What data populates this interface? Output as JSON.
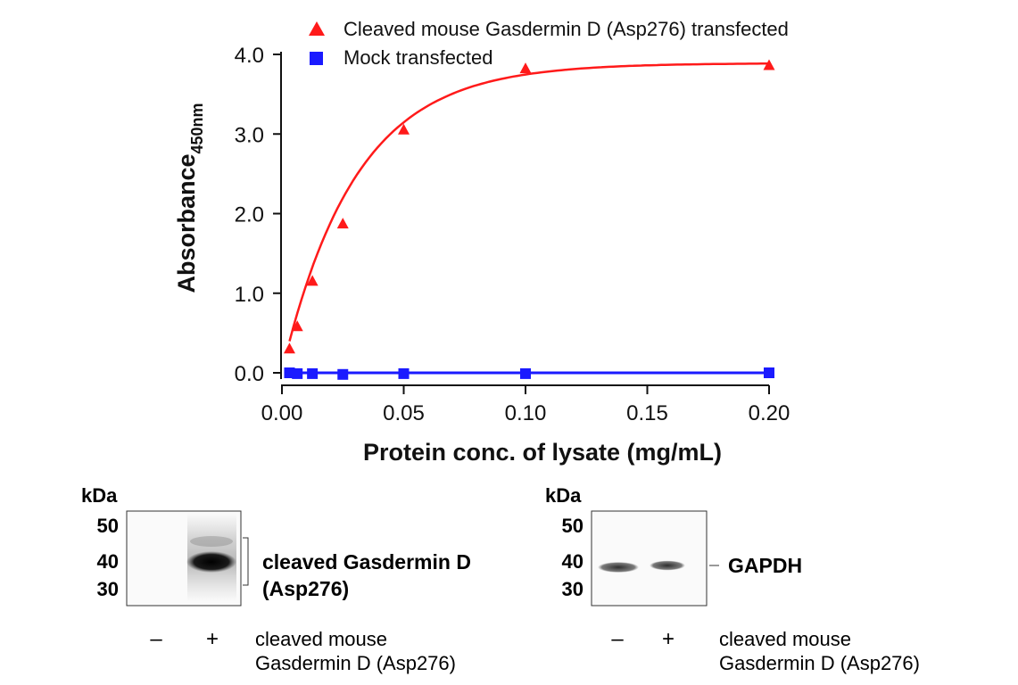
{
  "chart_data": {
    "type": "scatter",
    "xlabel": "Protein conc. of lysate (mg/mL)",
    "ylabel_main": "Absorbance",
    "ylabel_sub": "450nm",
    "xlim": [
      0.0,
      0.2
    ],
    "ylim": [
      0.0,
      4.0
    ],
    "xticks": [
      "0.00",
      "0.05",
      "0.10",
      "0.15",
      "0.20"
    ],
    "yticks": [
      "0.0",
      "1.0",
      "2.0",
      "3.0",
      "4.0"
    ],
    "grid": false,
    "legend_position": "top",
    "series": [
      {
        "name": "Cleaved mouse Gasdermin D (Asp276) transfected",
        "marker": "triangle",
        "color": "#ff1a1a",
        "x": [
          0.0031,
          0.0063,
          0.0125,
          0.025,
          0.05,
          0.1,
          0.2
        ],
        "y": [
          0.3,
          0.58,
          1.15,
          1.87,
          3.05,
          3.82,
          3.86
        ]
      },
      {
        "name": "Mock transfected",
        "marker": "square",
        "color": "#1a1aff",
        "x": [
          0.0031,
          0.0063,
          0.0125,
          0.025,
          0.05,
          0.1,
          0.2
        ],
        "y": [
          0.0,
          -0.01,
          -0.01,
          -0.02,
          -0.01,
          -0.01,
          0.0
        ]
      }
    ]
  },
  "blots": [
    {
      "kda_label": "kDa",
      "markers": [
        "50",
        "40",
        "30"
      ],
      "band_label_line1": "cleaved Gasdermin D",
      "band_label_line2": "(Asp276)",
      "lane_signs": [
        "–",
        "+"
      ],
      "condition_line1": "cleaved mouse",
      "condition_line2": "Gasdermin D (Asp276)"
    },
    {
      "kda_label": "kDa",
      "markers": [
        "50",
        "40",
        "30"
      ],
      "band_label_line1": "GAPDH",
      "lane_signs": [
        "–",
        "+"
      ],
      "condition_line1": "cleaved mouse",
      "condition_line2": "Gasdermin D (Asp276)"
    }
  ]
}
